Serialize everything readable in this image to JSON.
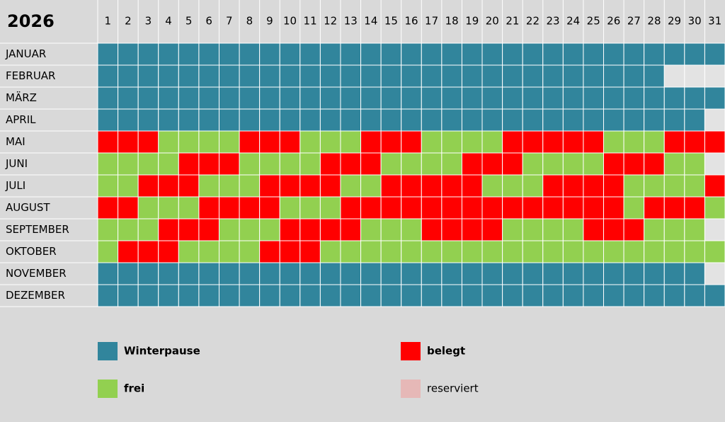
{
  "title": "2026",
  "days": [
    1,
    2,
    3,
    4,
    5,
    6,
    7,
    8,
    9,
    10,
    11,
    12,
    13,
    14,
    15,
    16,
    17,
    18,
    19,
    20,
    21,
    22,
    23,
    24,
    25,
    26,
    27,
    28,
    29,
    30,
    31
  ],
  "months": [
    {
      "name": "JANUAR",
      "cells": [
        0,
        0,
        0,
        0,
        0,
        0,
        0,
        0,
        0,
        0,
        0,
        0,
        0,
        0,
        0,
        0,
        0,
        0,
        0,
        0,
        0,
        0,
        0,
        0,
        0,
        0,
        0,
        0,
        0,
        0,
        0
      ]
    },
    {
      "name": "FEBRUAR",
      "cells": [
        0,
        0,
        0,
        0,
        0,
        0,
        0,
        0,
        0,
        0,
        0,
        0,
        0,
        0,
        0,
        0,
        0,
        0,
        0,
        0,
        0,
        0,
        0,
        0,
        0,
        0,
        0,
        0,
        null,
        null,
        null
      ]
    },
    {
      "name": "MÄRZ",
      "cells": [
        0,
        0,
        0,
        0,
        0,
        0,
        0,
        0,
        0,
        0,
        0,
        0,
        0,
        0,
        0,
        0,
        0,
        0,
        0,
        0,
        0,
        0,
        0,
        0,
        0,
        0,
        0,
        0,
        0,
        0,
        0
      ]
    },
    {
      "name": "APRIL",
      "cells": [
        0,
        0,
        0,
        0,
        0,
        0,
        0,
        0,
        0,
        0,
        0,
        0,
        0,
        0,
        0,
        0,
        0,
        0,
        0,
        0,
        0,
        0,
        0,
        0,
        0,
        0,
        0,
        0,
        0,
        0,
        null
      ]
    },
    {
      "name": "MAI",
      "cells": [
        1,
        1,
        1,
        2,
        2,
        2,
        2,
        1,
        1,
        1,
        2,
        2,
        2,
        1,
        1,
        1,
        2,
        2,
        2,
        2,
        1,
        1,
        1,
        1,
        1,
        2,
        2,
        2,
        1,
        1,
        1
      ]
    },
    {
      "name": "JUNI",
      "cells": [
        2,
        2,
        2,
        2,
        1,
        1,
        1,
        2,
        2,
        2,
        2,
        1,
        1,
        1,
        2,
        2,
        2,
        2,
        1,
        1,
        1,
        2,
        2,
        2,
        2,
        1,
        1,
        1,
        2,
        2,
        null
      ]
    },
    {
      "name": "JULI",
      "cells": [
        2,
        2,
        1,
        1,
        1,
        2,
        2,
        2,
        1,
        1,
        1,
        1,
        2,
        2,
        1,
        1,
        1,
        1,
        1,
        2,
        2,
        2,
        1,
        1,
        1,
        1,
        2,
        2,
        2,
        2,
        1
      ]
    },
    {
      "name": "AUGUST",
      "cells": [
        1,
        1,
        2,
        2,
        2,
        1,
        1,
        1,
        1,
        2,
        2,
        2,
        1,
        1,
        1,
        1,
        1,
        1,
        1,
        1,
        1,
        1,
        1,
        1,
        1,
        1,
        2,
        1,
        1,
        1,
        2
      ]
    },
    {
      "name": "SEPTEMBER",
      "cells": [
        2,
        2,
        2,
        1,
        1,
        1,
        2,
        2,
        2,
        1,
        1,
        1,
        1,
        2,
        2,
        2,
        1,
        1,
        1,
        1,
        2,
        2,
        2,
        2,
        1,
        1,
        1,
        2,
        2,
        2,
        null
      ]
    },
    {
      "name": "OKTOBER",
      "cells": [
        2,
        1,
        1,
        1,
        2,
        2,
        2,
        2,
        1,
        1,
        1,
        2,
        2,
        2,
        2,
        2,
        2,
        2,
        2,
        2,
        2,
        2,
        2,
        2,
        2,
        2,
        2,
        2,
        2,
        2,
        2
      ]
    },
    {
      "name": "NOVEMBER",
      "cells": [
        0,
        0,
        0,
        0,
        0,
        0,
        0,
        0,
        0,
        0,
        0,
        0,
        0,
        0,
        0,
        0,
        0,
        0,
        0,
        0,
        0,
        0,
        0,
        0,
        0,
        0,
        0,
        0,
        0,
        0,
        null
      ]
    },
    {
      "name": "DEZEMBER",
      "cells": [
        0,
        0,
        0,
        0,
        0,
        0,
        0,
        0,
        0,
        0,
        0,
        0,
        0,
        0,
        0,
        0,
        0,
        0,
        0,
        0,
        0,
        0,
        0,
        0,
        0,
        0,
        0,
        0,
        0,
        0,
        0
      ]
    }
  ],
  "legend": [
    {
      "label": "Winterpause",
      "color": "#31859c",
      "bold": true
    },
    {
      "label": "belegt",
      "color": "#ff0000",
      "bold": true
    },
    {
      "label": "frei",
      "color": "#92d050",
      "bold": true
    },
    {
      "label": "reserviert",
      "color": "#e6b8b7",
      "bold": false
    }
  ]
}
